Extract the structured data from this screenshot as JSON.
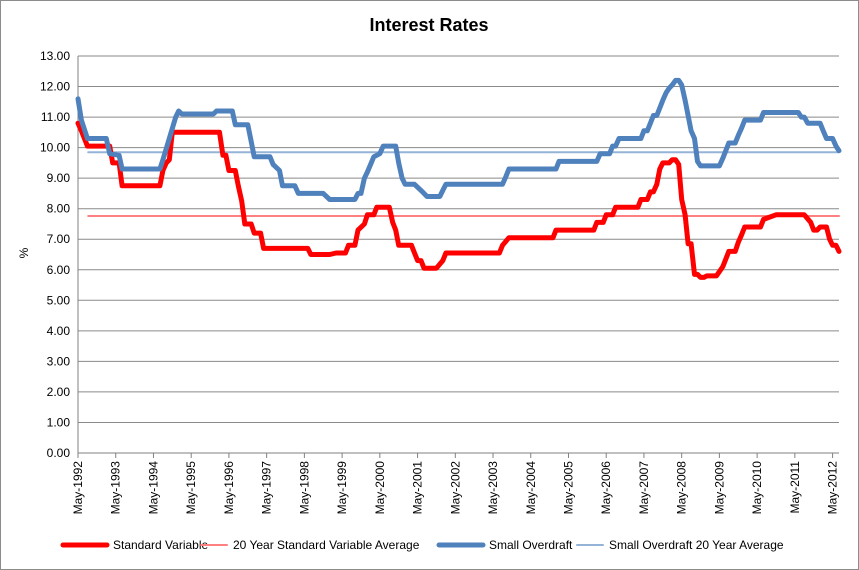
{
  "chart_data": {
    "type": "line",
    "title": "Interest Rates",
    "ylabel": "%",
    "xlabel": "",
    "ylim": [
      0,
      13
    ],
    "yticks": [
      "0.00",
      "1.00",
      "2.00",
      "3.00",
      "4.00",
      "5.00",
      "6.00",
      "7.00",
      "8.00",
      "9.00",
      "10.00",
      "11.00",
      "12.00",
      "13.00"
    ],
    "xlim": [
      1992.33,
      2012.5
    ],
    "xticks": [
      {
        "x": 1992.33,
        "label": "May-1992"
      },
      {
        "x": 1993.33,
        "label": "May-1993"
      },
      {
        "x": 1994.33,
        "label": "May-1994"
      },
      {
        "x": 1995.33,
        "label": "May-1995"
      },
      {
        "x": 1996.33,
        "label": "May-1996"
      },
      {
        "x": 1997.33,
        "label": "May-1997"
      },
      {
        "x": 1998.33,
        "label": "May-1998"
      },
      {
        "x": 1999.33,
        "label": "May-1999"
      },
      {
        "x": 2000.33,
        "label": "May-2000"
      },
      {
        "x": 2001.33,
        "label": "May-2001"
      },
      {
        "x": 2002.33,
        "label": "May-2002"
      },
      {
        "x": 2003.33,
        "label": "May-2003"
      },
      {
        "x": 2004.33,
        "label": "May-2004"
      },
      {
        "x": 2005.33,
        "label": "May-2005"
      },
      {
        "x": 2006.33,
        "label": "May-2006"
      },
      {
        "x": 2007.33,
        "label": "May-2007"
      },
      {
        "x": 2008.33,
        "label": "May-2008"
      },
      {
        "x": 2009.33,
        "label": "May-2009"
      },
      {
        "x": 2010.33,
        "label": "May-2010"
      },
      {
        "x": 2011.33,
        "label": "May-2011"
      },
      {
        "x": 2012.33,
        "label": "May-2012"
      }
    ],
    "grid": {
      "horizontal": true,
      "vertical": false
    },
    "legend": "bottom",
    "series": [
      {
        "name": "Standard Variable",
        "color": "#ff0000",
        "width": 5,
        "points": [
          [
            1992.33,
            10.8
          ],
          [
            1992.42,
            10.55
          ],
          [
            1992.58,
            10.05
          ],
          [
            1992.92,
            10.05
          ],
          [
            1993.17,
            10.05
          ],
          [
            1993.25,
            9.5
          ],
          [
            1993.42,
            9.5
          ],
          [
            1993.5,
            8.75
          ],
          [
            1993.83,
            8.75
          ],
          [
            1994.17,
            8.75
          ],
          [
            1994.5,
            8.75
          ],
          [
            1994.58,
            9.25
          ],
          [
            1994.67,
            9.5
          ],
          [
            1994.75,
            9.6
          ],
          [
            1994.83,
            10.5
          ],
          [
            1995.42,
            10.5
          ],
          [
            1996.0,
            10.5
          ],
          [
            1996.08,
            10.5
          ],
          [
            1996.17,
            9.75
          ],
          [
            1996.25,
            9.75
          ],
          [
            1996.33,
            9.25
          ],
          [
            1996.5,
            9.25
          ],
          [
            1996.58,
            8.75
          ],
          [
            1996.67,
            8.25
          ],
          [
            1996.75,
            7.5
          ],
          [
            1996.92,
            7.5
          ],
          [
            1997.0,
            7.2
          ],
          [
            1997.17,
            7.2
          ],
          [
            1997.25,
            6.7
          ],
          [
            1997.67,
            6.7
          ],
          [
            1998.0,
            6.7
          ],
          [
            1998.42,
            6.7
          ],
          [
            1998.5,
            6.5
          ],
          [
            1998.83,
            6.5
          ],
          [
            1999.0,
            6.5
          ],
          [
            1999.17,
            6.55
          ],
          [
            1999.42,
            6.55
          ],
          [
            1999.5,
            6.8
          ],
          [
            1999.67,
            6.8
          ],
          [
            1999.75,
            7.3
          ],
          [
            1999.92,
            7.5
          ],
          [
            2000.0,
            7.8
          ],
          [
            2000.17,
            7.8
          ],
          [
            2000.25,
            8.05
          ],
          [
            2000.58,
            8.05
          ],
          [
            2000.67,
            7.55
          ],
          [
            2000.75,
            7.3
          ],
          [
            2000.83,
            6.8
          ],
          [
            2001.17,
            6.8
          ],
          [
            2001.25,
            6.55
          ],
          [
            2001.33,
            6.3
          ],
          [
            2001.42,
            6.3
          ],
          [
            2001.5,
            6.05
          ],
          [
            2001.83,
            6.05
          ],
          [
            2002.0,
            6.3
          ],
          [
            2002.08,
            6.55
          ],
          [
            2002.5,
            6.55
          ],
          [
            2003.0,
            6.55
          ],
          [
            2003.42,
            6.55
          ],
          [
            2003.5,
            6.55
          ],
          [
            2003.58,
            6.8
          ],
          [
            2003.75,
            7.05
          ],
          [
            2004.17,
            7.05
          ],
          [
            2004.58,
            7.05
          ],
          [
            2004.92,
            7.05
          ],
          [
            2005.0,
            7.3
          ],
          [
            2005.42,
            7.3
          ],
          [
            2005.83,
            7.3
          ],
          [
            2006.0,
            7.3
          ],
          [
            2006.08,
            7.55
          ],
          [
            2006.25,
            7.55
          ],
          [
            2006.33,
            7.8
          ],
          [
            2006.5,
            7.8
          ],
          [
            2006.58,
            8.05
          ],
          [
            2006.92,
            8.05
          ],
          [
            2007.17,
            8.05
          ],
          [
            2007.25,
            8.3
          ],
          [
            2007.42,
            8.3
          ],
          [
            2007.5,
            8.55
          ],
          [
            2007.58,
            8.55
          ],
          [
            2007.67,
            8.8
          ],
          [
            2007.75,
            9.3
          ],
          [
            2007.83,
            9.5
          ],
          [
            2007.92,
            9.5
          ],
          [
            2008.0,
            9.5
          ],
          [
            2008.08,
            9.6
          ],
          [
            2008.17,
            9.6
          ],
          [
            2008.25,
            9.45
          ],
          [
            2008.33,
            8.3
          ],
          [
            2008.42,
            7.8
          ],
          [
            2008.5,
            6.85
          ],
          [
            2008.58,
            6.85
          ],
          [
            2008.67,
            5.85
          ],
          [
            2008.75,
            5.85
          ],
          [
            2008.83,
            5.75
          ],
          [
            2008.92,
            5.75
          ],
          [
            2009.0,
            5.8
          ],
          [
            2009.25,
            5.8
          ],
          [
            2009.42,
            6.1
          ],
          [
            2009.5,
            6.35
          ],
          [
            2009.58,
            6.6
          ],
          [
            2009.75,
            6.6
          ],
          [
            2009.83,
            6.9
          ],
          [
            2009.92,
            7.15
          ],
          [
            2010.0,
            7.4
          ],
          [
            2010.42,
            7.4
          ],
          [
            2010.5,
            7.65
          ],
          [
            2010.83,
            7.8
          ],
          [
            2011.42,
            7.8
          ],
          [
            2011.58,
            7.8
          ],
          [
            2011.75,
            7.55
          ],
          [
            2011.83,
            7.3
          ],
          [
            2011.92,
            7.3
          ],
          [
            2012.0,
            7.4
          ],
          [
            2012.17,
            7.4
          ],
          [
            2012.25,
            7.0
          ],
          [
            2012.33,
            6.8
          ],
          [
            2012.42,
            6.8
          ],
          [
            2012.5,
            6.6
          ]
        ]
      },
      {
        "name": "20 Year Standard Variable Average",
        "color": "#ff8080",
        "width": 2,
        "points": [
          [
            1992.6,
            7.76
          ],
          [
            2012.5,
            7.76
          ]
        ]
      },
      {
        "name": "Small Overdraft",
        "color": "#4f81bd",
        "width": 5,
        "points": [
          [
            1992.33,
            11.6
          ],
          [
            1992.42,
            10.9
          ],
          [
            1992.58,
            10.3
          ],
          [
            1993.08,
            10.3
          ],
          [
            1993.17,
            9.8
          ],
          [
            1993.42,
            9.75
          ],
          [
            1993.5,
            9.3
          ],
          [
            1994.0,
            9.3
          ],
          [
            1994.5,
            9.3
          ],
          [
            1994.58,
            9.6
          ],
          [
            1994.75,
            10.3
          ],
          [
            1994.92,
            11.0
          ],
          [
            1995.0,
            11.2
          ],
          [
            1995.08,
            11.1
          ],
          [
            1995.42,
            11.1
          ],
          [
            1995.92,
            11.1
          ],
          [
            1996.0,
            11.2
          ],
          [
            1996.42,
            11.2
          ],
          [
            1996.5,
            10.75
          ],
          [
            1996.83,
            10.75
          ],
          [
            1996.92,
            10.2
          ],
          [
            1997.0,
            9.7
          ],
          [
            1997.42,
            9.7
          ],
          [
            1997.5,
            9.45
          ],
          [
            1997.67,
            9.25
          ],
          [
            1997.75,
            8.75
          ],
          [
            1998.08,
            8.75
          ],
          [
            1998.17,
            8.5
          ],
          [
            1998.67,
            8.5
          ],
          [
            1998.83,
            8.5
          ],
          [
            1999.0,
            8.3
          ],
          [
            1999.5,
            8.3
          ],
          [
            1999.67,
            8.3
          ],
          [
            1999.75,
            8.5
          ],
          [
            1999.83,
            8.5
          ],
          [
            1999.92,
            9.0
          ],
          [
            2000.0,
            9.2
          ],
          [
            2000.17,
            9.7
          ],
          [
            2000.33,
            9.8
          ],
          [
            2000.42,
            10.05
          ],
          [
            2000.75,
            10.05
          ],
          [
            2000.83,
            9.5
          ],
          [
            2000.92,
            9.0
          ],
          [
            2001.0,
            8.8
          ],
          [
            2001.25,
            8.8
          ],
          [
            2001.42,
            8.6
          ],
          [
            2001.58,
            8.4
          ],
          [
            2001.92,
            8.4
          ],
          [
            2002.0,
            8.6
          ],
          [
            2002.08,
            8.8
          ],
          [
            2002.5,
            8.8
          ],
          [
            2003.0,
            8.8
          ],
          [
            2003.5,
            8.8
          ],
          [
            2003.58,
            8.8
          ],
          [
            2003.67,
            9.05
          ],
          [
            2003.75,
            9.3
          ],
          [
            2004.0,
            9.3
          ],
          [
            2004.5,
            9.3
          ],
          [
            2004.83,
            9.3
          ],
          [
            2005.0,
            9.3
          ],
          [
            2005.08,
            9.55
          ],
          [
            2005.5,
            9.55
          ],
          [
            2006.0,
            9.55
          ],
          [
            2006.08,
            9.55
          ],
          [
            2006.17,
            9.8
          ],
          [
            2006.42,
            9.8
          ],
          [
            2006.5,
            10.05
          ],
          [
            2006.58,
            10.05
          ],
          [
            2006.67,
            10.3
          ],
          [
            2007.17,
            10.3
          ],
          [
            2007.25,
            10.3
          ],
          [
            2007.33,
            10.55
          ],
          [
            2007.42,
            10.55
          ],
          [
            2007.5,
            10.8
          ],
          [
            2007.58,
            11.05
          ],
          [
            2007.67,
            11.05
          ],
          [
            2007.75,
            11.3
          ],
          [
            2007.83,
            11.55
          ],
          [
            2007.92,
            11.8
          ],
          [
            2008.0,
            11.95
          ],
          [
            2008.08,
            12.05
          ],
          [
            2008.17,
            12.2
          ],
          [
            2008.25,
            12.2
          ],
          [
            2008.33,
            12.05
          ],
          [
            2008.42,
            11.55
          ],
          [
            2008.5,
            11.05
          ],
          [
            2008.58,
            10.55
          ],
          [
            2008.67,
            10.3
          ],
          [
            2008.75,
            9.55
          ],
          [
            2008.83,
            9.4
          ],
          [
            2008.92,
            9.4
          ],
          [
            2009.17,
            9.4
          ],
          [
            2009.33,
            9.4
          ],
          [
            2009.42,
            9.65
          ],
          [
            2009.5,
            9.9
          ],
          [
            2009.58,
            10.15
          ],
          [
            2009.75,
            10.15
          ],
          [
            2009.83,
            10.4
          ],
          [
            2009.92,
            10.65
          ],
          [
            2010.0,
            10.9
          ],
          [
            2010.42,
            10.9
          ],
          [
            2010.5,
            11.15
          ],
          [
            2010.83,
            11.15
          ],
          [
            2011.42,
            11.15
          ],
          [
            2011.5,
            11.0
          ],
          [
            2011.58,
            11.0
          ],
          [
            2011.67,
            10.8
          ],
          [
            2012.0,
            10.8
          ],
          [
            2012.08,
            10.55
          ],
          [
            2012.17,
            10.3
          ],
          [
            2012.33,
            10.3
          ],
          [
            2012.42,
            10.05
          ],
          [
            2012.5,
            9.9
          ]
        ]
      },
      {
        "name": "Small Overdraft 20 Year Average",
        "color": "#95b3d7",
        "width": 2,
        "points": [
          [
            1992.6,
            9.85
          ],
          [
            2012.5,
            9.85
          ]
        ]
      }
    ]
  }
}
